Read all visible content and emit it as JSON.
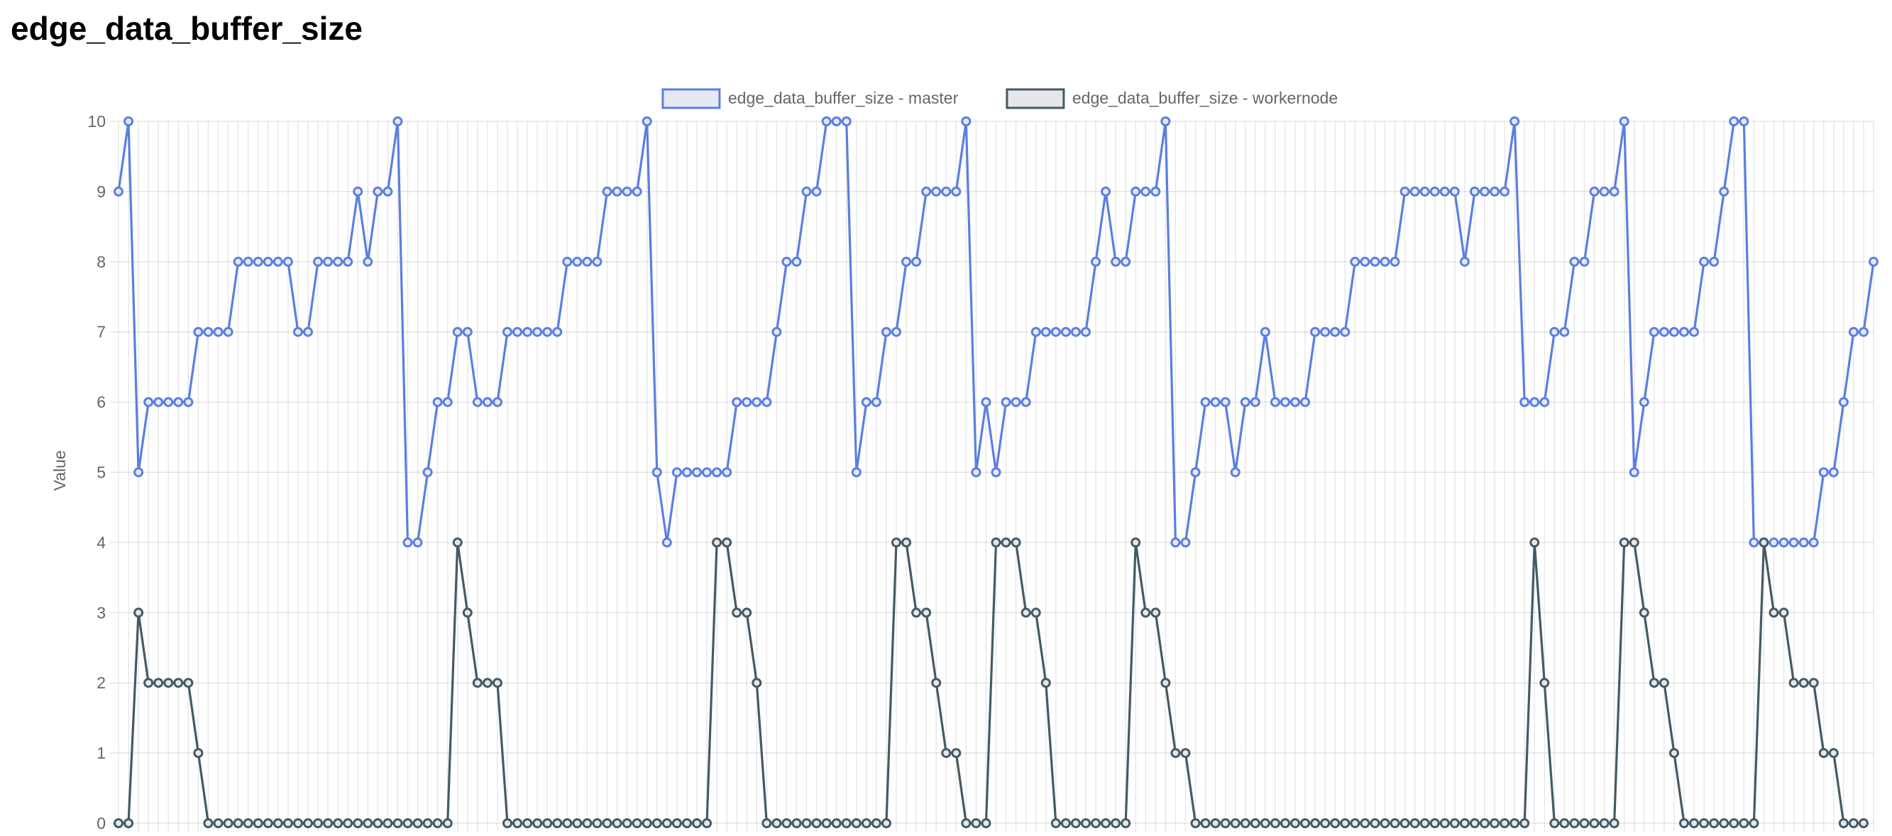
{
  "page": {
    "title": "edge_data_buffer_size"
  },
  "chart_data": {
    "type": "line",
    "title": "",
    "xlabel": "",
    "ylabel": "Value",
    "ylim": [
      0,
      10
    ],
    "yticks": [
      "0",
      "1",
      "2",
      "3",
      "4",
      "5",
      "6",
      "7",
      "8",
      "9",
      "10"
    ],
    "grid": true,
    "legend_position": "top",
    "series": [
      {
        "name": "edge_data_buffer_size - master",
        "color": "#5b7fe0",
        "fill": "#e6e9f4",
        "values": [
          9,
          10,
          5,
          6,
          6,
          6,
          6,
          6,
          7,
          7,
          7,
          7,
          8,
          8,
          8,
          8,
          8,
          8,
          7,
          7,
          8,
          8,
          8,
          8,
          9,
          8,
          9,
          9,
          10,
          4,
          4,
          5,
          6,
          6,
          7,
          7,
          6,
          6,
          6,
          7,
          7,
          7,
          7,
          7,
          7,
          8,
          8,
          8,
          8,
          9,
          9,
          9,
          9,
          10,
          5,
          4,
          5,
          5,
          5,
          5,
          5,
          5,
          6,
          6,
          6,
          6,
          7,
          8,
          8,
          9,
          9,
          10,
          10,
          10,
          5,
          6,
          6,
          7,
          7,
          8,
          8,
          9,
          9,
          9,
          9,
          10,
          5,
          6,
          5,
          6,
          6,
          6,
          7,
          7,
          7,
          7,
          7,
          7,
          8,
          9,
          8,
          8,
          9,
          9,
          9,
          10,
          4,
          4,
          5,
          6,
          6,
          6,
          5,
          6,
          6,
          7,
          6,
          6,
          6,
          6,
          7,
          7,
          7,
          7,
          8,
          8,
          8,
          8,
          8,
          9,
          9,
          9,
          9,
          9,
          9,
          8,
          9,
          9,
          9,
          9,
          10,
          6,
          6,
          6,
          7,
          7,
          8,
          8,
          9,
          9,
          9,
          10,
          5,
          6,
          7,
          7,
          7,
          7,
          7,
          8,
          8,
          9,
          10,
          10,
          4,
          4,
          4,
          4,
          4,
          4,
          4,
          5,
          5,
          6,
          7,
          7,
          8
        ]
      },
      {
        "name": "edge_data_buffer_size - workernode",
        "color": "#455a64",
        "fill": "#e5e7ea",
        "values": [
          0,
          0,
          3,
          2,
          2,
          2,
          2,
          2,
          1,
          0,
          0,
          0,
          0,
          0,
          0,
          0,
          0,
          0,
          0,
          0,
          0,
          0,
          0,
          0,
          0,
          0,
          0,
          0,
          0,
          0,
          0,
          0,
          0,
          0,
          4,
          3,
          2,
          2,
          2,
          0,
          0,
          0,
          0,
          0,
          0,
          0,
          0,
          0,
          0,
          0,
          0,
          0,
          0,
          0,
          0,
          0,
          0,
          0,
          0,
          0,
          4,
          4,
          3,
          3,
          2,
          0,
          0,
          0,
          0,
          0,
          0,
          0,
          0,
          0,
          0,
          0,
          0,
          0,
          4,
          4,
          3,
          3,
          2,
          1,
          1,
          0,
          0,
          0,
          4,
          4,
          4,
          3,
          3,
          2,
          0,
          0,
          0,
          0,
          0,
          0,
          0,
          0,
          4,
          3,
          3,
          2,
          1,
          1,
          0,
          0,
          0,
          0,
          0,
          0,
          0,
          0,
          0,
          0,
          0,
          0,
          0,
          0,
          0,
          0,
          0,
          0,
          0,
          0,
          0,
          0,
          0,
          0,
          0,
          0,
          0,
          0,
          0,
          0,
          0,
          0,
          0,
          0,
          4,
          2,
          0,
          0,
          0,
          0,
          0,
          0,
          0,
          4,
          4,
          3,
          2,
          2,
          1,
          0,
          0,
          0,
          0,
          0,
          0,
          0,
          0,
          4,
          3,
          3,
          2,
          2,
          2,
          1,
          1,
          0,
          0,
          0
        ]
      }
    ]
  }
}
